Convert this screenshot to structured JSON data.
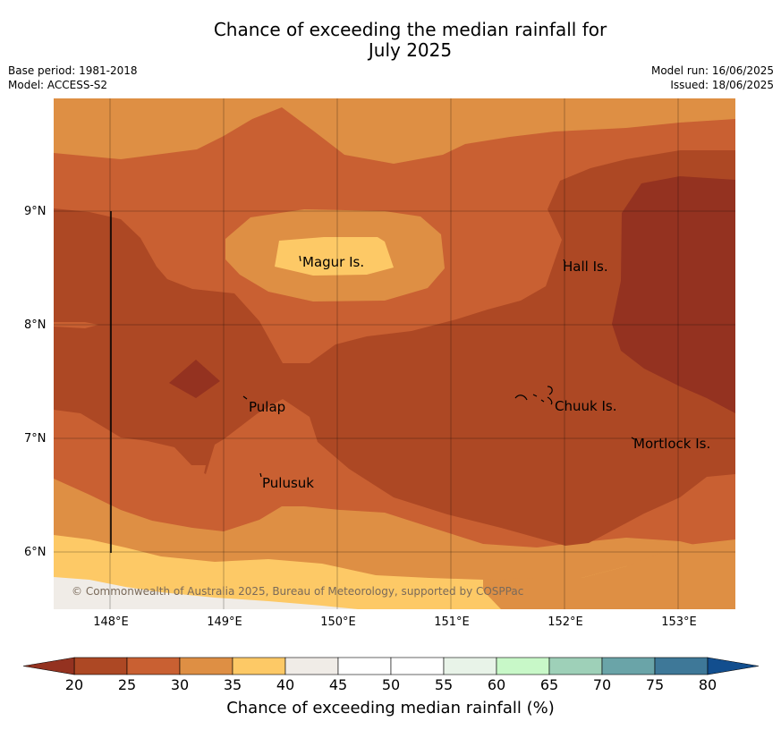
{
  "title": {
    "line1": "Chance of exceeding the median rainfall for",
    "line2": "July 2025"
  },
  "info": {
    "base_period": "Base period: 1981-2018",
    "model": "Model: ACCESS-S2",
    "model_run": "Model run: 16/06/2025",
    "issued": "Issued: 18/06/2025"
  },
  "map": {
    "lat_labels": [
      "9°N",
      "8°N",
      "7°N",
      "6°N"
    ],
    "lon_labels": [
      "148°E",
      "149°E",
      "150°E",
      "151°E",
      "152°E",
      "153°E"
    ],
    "places": [
      "Magur Is.",
      "Hall Is.",
      "Pulap",
      "Chuuk Is.",
      "Mortlock Is.",
      "Pulusuk"
    ],
    "credit": "© Commonwealth of Australia 2025, Bureau of Meteorology, supported by COSPPac",
    "colors": {
      "c15_20": "#943220",
      "c20_25": "#ad4824",
      "c25_30": "#c96032",
      "c30_35": "#de8f44",
      "c35_40": "#fdc966",
      "c40_45": "#f0ece7"
    }
  },
  "legend": {
    "ticks": [
      "20",
      "25",
      "30",
      "35",
      "40",
      "45",
      "50",
      "55",
      "60",
      "65",
      "70",
      "75",
      "80"
    ],
    "colors": [
      "#ad4824",
      "#c96032",
      "#de8f44",
      "#fdc966",
      "#f0ece7",
      "#ffffff",
      "#ffffff",
      "#e8f3e8",
      "#c8f8c8",
      "#9ed0b8",
      "#6aa4a8",
      "#3e7898"
    ],
    "under_color": "#943220",
    "over_color": "#124e8e",
    "label": "Chance of exceeding median rainfall (%)"
  }
}
